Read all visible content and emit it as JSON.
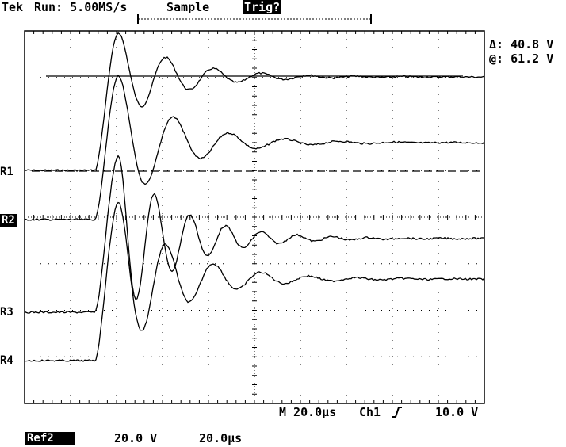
{
  "header": {
    "brand": "Tek",
    "run_state": "Run: 5.00MS/s",
    "acq_mode": "Sample",
    "trig_status": "Trig?"
  },
  "cursor": {
    "delta": "Δ: 40.8 V",
    "at": "@: 61.2 V"
  },
  "refs": [
    {
      "label": "R1",
      "active": false
    },
    {
      "label": "R2",
      "active": true
    },
    {
      "label": "R3",
      "active": false
    },
    {
      "label": "R4",
      "active": false
    }
  ],
  "footer": {
    "timebase": "M 20.0µs",
    "trigger_source": "Ch1",
    "trigger_slope_icon": "rising-edge-icon",
    "trigger_level": "10.0 V"
  },
  "ref_info": {
    "label": "Ref2",
    "volts_per_div": "20.0 V",
    "time_per_div": "20.0µs"
  },
  "colors": {
    "trace": "#000000",
    "grid": "#000000",
    "background": "#ffffff"
  }
}
